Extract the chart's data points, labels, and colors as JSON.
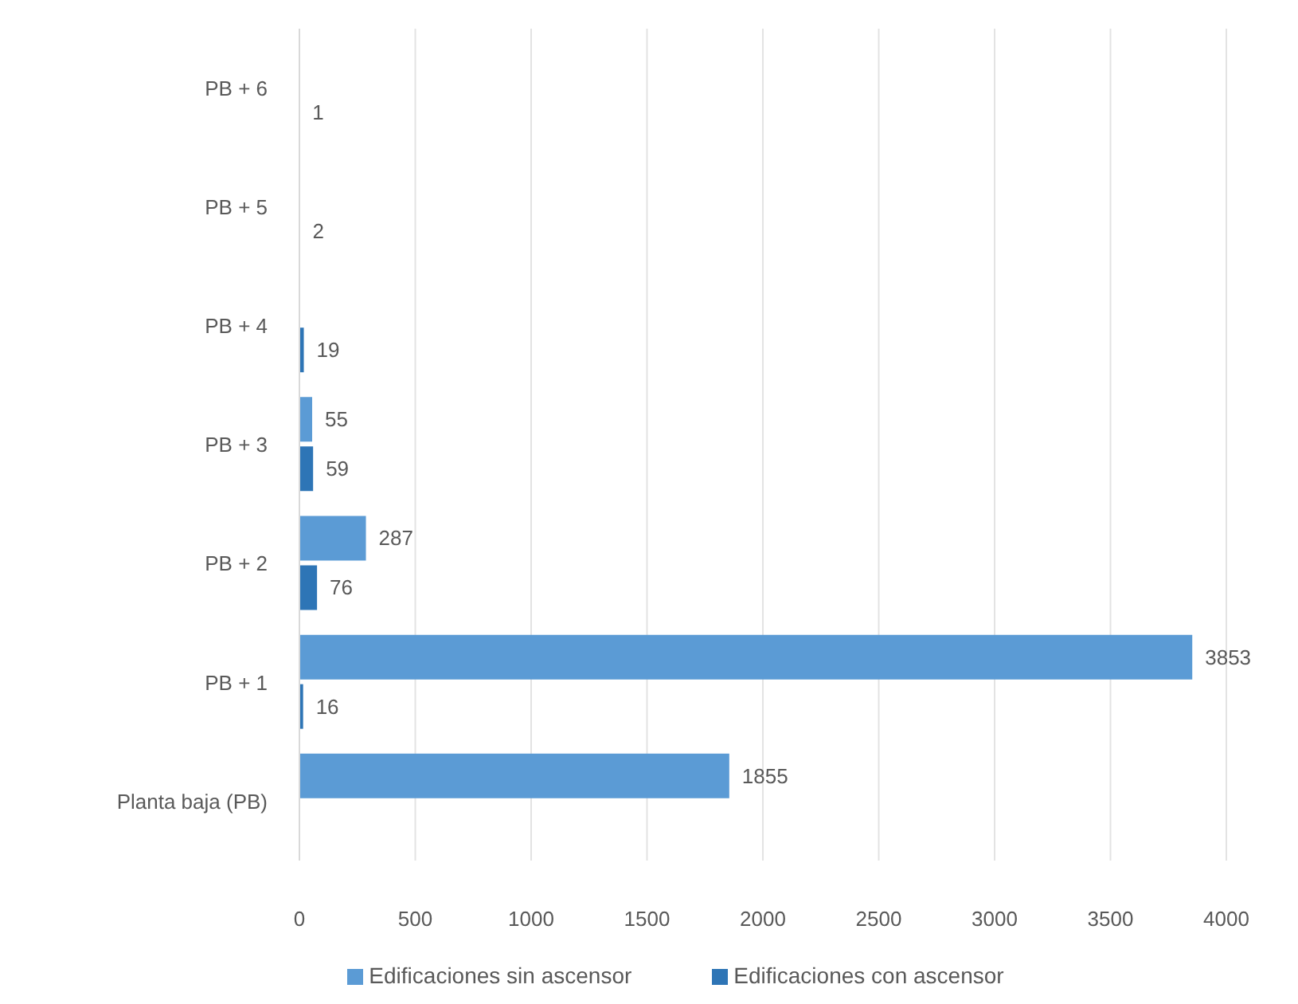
{
  "chart_data": {
    "type": "bar",
    "orientation": "horizontal",
    "categories": [
      "PB + 6",
      "PB + 5",
      "PB + 4",
      "PB + 3",
      "PB + 2",
      "PB + 1",
      "Planta baja (PB)"
    ],
    "series": [
      {
        "name": "Edificaciones sin ascensor",
        "color": "#5b9bd5",
        "values": [
          null,
          null,
          null,
          55,
          287,
          3853,
          1855
        ]
      },
      {
        "name": "Edificaciones con ascensor",
        "color": "#2e75b6",
        "values": [
          1,
          2,
          19,
          59,
          76,
          16,
          null
        ]
      }
    ],
    "xlim": [
      0,
      4000
    ],
    "xticks": [
      0,
      500,
      1000,
      1500,
      2000,
      2500,
      3000,
      3500,
      4000
    ],
    "grid": "x",
    "legend": "bottom",
    "data_labels": true
  }
}
